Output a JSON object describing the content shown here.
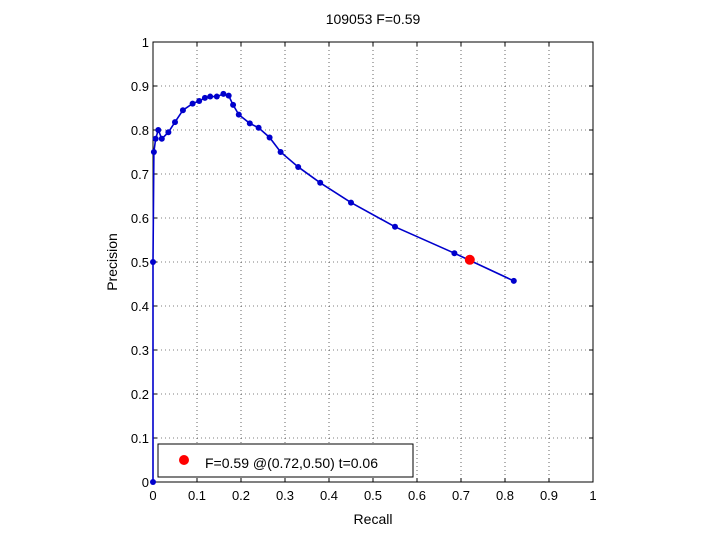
{
  "chart_data": {
    "type": "line",
    "title": "109053 F=0.59",
    "xlabel": "Recall",
    "ylabel": "Precision",
    "xlim": [
      0,
      1
    ],
    "ylim": [
      0,
      1
    ],
    "xticks": [
      "0",
      "0.1",
      "0.2",
      "0.3",
      "0.4",
      "0.5",
      "0.6",
      "0.7",
      "0.8",
      "0.9",
      "1"
    ],
    "yticks": [
      "0",
      "0.1",
      "0.2",
      "0.3",
      "0.4",
      "0.5",
      "0.6",
      "0.7",
      "0.8",
      "0.9",
      "1"
    ],
    "grid": true,
    "legend_position": "bottom-left",
    "line_color": "#0000cc",
    "highlight_color": "#ff0000",
    "series": [
      {
        "points": [
          [
            0.0,
            0.0
          ],
          [
            0.0,
            0.5
          ],
          [
            0.002,
            0.75
          ],
          [
            0.006,
            0.78
          ],
          [
            0.012,
            0.8
          ],
          [
            0.02,
            0.78
          ],
          [
            0.035,
            0.795
          ],
          [
            0.05,
            0.818
          ],
          [
            0.068,
            0.845
          ],
          [
            0.09,
            0.86
          ],
          [
            0.105,
            0.866
          ],
          [
            0.118,
            0.873
          ],
          [
            0.13,
            0.876
          ],
          [
            0.145,
            0.876
          ],
          [
            0.16,
            0.882
          ],
          [
            0.172,
            0.878
          ],
          [
            0.182,
            0.857
          ],
          [
            0.195,
            0.835
          ],
          [
            0.22,
            0.815
          ],
          [
            0.24,
            0.805
          ],
          [
            0.265,
            0.783
          ],
          [
            0.29,
            0.75
          ],
          [
            0.33,
            0.716
          ],
          [
            0.38,
            0.68
          ],
          [
            0.45,
            0.635
          ],
          [
            0.55,
            0.58
          ],
          [
            0.685,
            0.52
          ],
          [
            0.82,
            0.457
          ]
        ]
      }
    ],
    "highlight": {
      "x": 0.72,
      "y": 0.505
    },
    "legend": {
      "entries": [
        "F=0.59 @(0.72,0.50) t=0.06"
      ]
    }
  }
}
